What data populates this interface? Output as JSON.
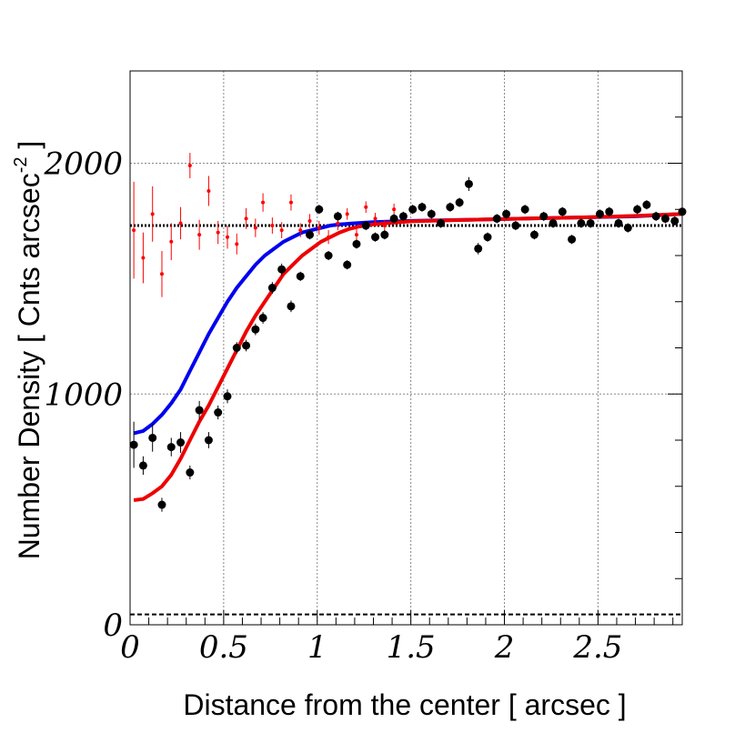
{
  "chart_data": {
    "type": "scatter",
    "title": "",
    "xlabel": "Distance from the center [ arcsec ]",
    "ylabel_main": "Number Density [ Cnts arcsec",
    "ylabel_sup": "-2",
    "ylabel_end": " ]",
    "xlim": [
      0,
      2.95
    ],
    "ylim": [
      0,
      2400
    ],
    "grid": true,
    "x_ticks": [
      0,
      0.5,
      1,
      1.5,
      2,
      2.5
    ],
    "x_tick_labels": [
      "0",
      "0.5",
      "1",
      "1.5",
      "2",
      "2.5"
    ],
    "y_ticks": [
      0,
      1000,
      2000
    ],
    "y_tick_labels": [
      "0",
      "1000",
      "2000"
    ],
    "colors": {
      "data_black": "#000000",
      "data_red": "#ff0000",
      "model_blue": "#0000ee",
      "model_red": "#ee0000"
    },
    "black_points": [
      [
        0.02,
        780,
        200
      ],
      [
        0.07,
        690,
        80
      ],
      [
        0.12,
        810,
        120
      ],
      [
        0.17,
        520,
        60
      ],
      [
        0.22,
        770,
        80
      ],
      [
        0.27,
        790,
        90
      ],
      [
        0.32,
        660,
        60
      ],
      [
        0.37,
        930,
        80
      ],
      [
        0.42,
        800,
        70
      ],
      [
        0.47,
        920,
        60
      ],
      [
        0.52,
        990,
        60
      ],
      [
        0.57,
        1200,
        50
      ],
      [
        0.62,
        1210,
        50
      ],
      [
        0.67,
        1280,
        50
      ],
      [
        0.71,
        1330,
        50
      ],
      [
        0.76,
        1460,
        50
      ],
      [
        0.81,
        1540,
        50
      ],
      [
        0.86,
        1380,
        50
      ],
      [
        0.91,
        1510,
        40
      ],
      [
        0.96,
        1690,
        40
      ],
      [
        1.01,
        1800,
        40
      ],
      [
        1.06,
        1600,
        40
      ],
      [
        1.11,
        1770,
        40
      ],
      [
        1.16,
        1560,
        40
      ],
      [
        1.21,
        1650,
        40
      ],
      [
        1.26,
        1730,
        40
      ],
      [
        1.31,
        1680,
        40
      ],
      [
        1.36,
        1690,
        40
      ],
      [
        1.41,
        1760,
        40
      ],
      [
        1.46,
        1770,
        40
      ],
      [
        1.51,
        1800,
        40
      ],
      [
        1.56,
        1810,
        40
      ],
      [
        1.61,
        1780,
        40
      ],
      [
        1.66,
        1740,
        40
      ],
      [
        1.71,
        1810,
        40
      ],
      [
        1.76,
        1830,
        40
      ],
      [
        1.81,
        1910,
        60
      ],
      [
        1.86,
        1630,
        50
      ],
      [
        1.91,
        1680,
        40
      ],
      [
        1.96,
        1760,
        40
      ],
      [
        2.01,
        1780,
        40
      ],
      [
        2.06,
        1730,
        40
      ],
      [
        2.11,
        1800,
        40
      ],
      [
        2.16,
        1690,
        40
      ],
      [
        2.21,
        1770,
        40
      ],
      [
        2.26,
        1740,
        40
      ],
      [
        2.31,
        1790,
        40
      ],
      [
        2.36,
        1670,
        40
      ],
      [
        2.41,
        1740,
        40
      ],
      [
        2.46,
        1740,
        40
      ],
      [
        2.51,
        1780,
        40
      ],
      [
        2.56,
        1790,
        40
      ],
      [
        2.61,
        1740,
        40
      ],
      [
        2.66,
        1720,
        40
      ],
      [
        2.71,
        1800,
        40
      ],
      [
        2.76,
        1820,
        40
      ],
      [
        2.81,
        1770,
        40
      ],
      [
        2.86,
        1760,
        40
      ],
      [
        2.91,
        1750,
        40
      ],
      [
        2.95,
        1790,
        30
      ]
    ],
    "red_points": [
      [
        0.02,
        1710,
        420
      ],
      [
        0.07,
        1590,
        220
      ],
      [
        0.12,
        1780,
        240
      ],
      [
        0.17,
        1520,
        200
      ],
      [
        0.22,
        1660,
        160
      ],
      [
        0.27,
        1740,
        140
      ],
      [
        0.32,
        1990,
        110
      ],
      [
        0.37,
        1690,
        130
      ],
      [
        0.42,
        1880,
        130
      ],
      [
        0.47,
        1700,
        100
      ],
      [
        0.52,
        1680,
        100
      ],
      [
        0.57,
        1650,
        90
      ],
      [
        0.62,
        1760,
        90
      ],
      [
        0.67,
        1720,
        80
      ],
      [
        0.71,
        1830,
        80
      ],
      [
        0.76,
        1730,
        70
      ],
      [
        0.81,
        1710,
        70
      ],
      [
        0.86,
        1830,
        70
      ],
      [
        0.91,
        1710,
        60
      ],
      [
        0.96,
        1750,
        60
      ],
      [
        1.01,
        1720,
        60
      ],
      [
        1.06,
        1680,
        60
      ],
      [
        1.11,
        1740,
        60
      ],
      [
        1.16,
        1780,
        50
      ],
      [
        1.21,
        1690,
        50
      ],
      [
        1.26,
        1810,
        50
      ],
      [
        1.31,
        1760,
        50
      ],
      [
        1.36,
        1730,
        50
      ],
      [
        1.41,
        1800,
        50
      ]
    ],
    "blue_model": [
      [
        0.02,
        830
      ],
      [
        0.07,
        840
      ],
      [
        0.12,
        870
      ],
      [
        0.17,
        910
      ],
      [
        0.22,
        960
      ],
      [
        0.27,
        1020
      ],
      [
        0.32,
        1100
      ],
      [
        0.37,
        1180
      ],
      [
        0.42,
        1260
      ],
      [
        0.47,
        1330
      ],
      [
        0.52,
        1400
      ],
      [
        0.57,
        1460
      ],
      [
        0.62,
        1510
      ],
      [
        0.67,
        1560
      ],
      [
        0.72,
        1600
      ],
      [
        0.77,
        1630
      ],
      [
        0.82,
        1660
      ],
      [
        0.87,
        1680
      ],
      [
        0.92,
        1700
      ],
      [
        0.97,
        1710
      ],
      [
        1.02,
        1720
      ],
      [
        1.07,
        1730
      ],
      [
        1.12,
        1735
      ],
      [
        1.2,
        1740
      ],
      [
        1.3,
        1745
      ],
      [
        1.5,
        1750
      ],
      [
        1.8,
        1755
      ],
      [
        2.1,
        1760
      ],
      [
        2.4,
        1765
      ],
      [
        2.7,
        1770
      ],
      [
        2.95,
        1780
      ]
    ],
    "red_model": [
      [
        0.02,
        540
      ],
      [
        0.07,
        545
      ],
      [
        0.12,
        570
      ],
      [
        0.17,
        600
      ],
      [
        0.22,
        650
      ],
      [
        0.27,
        720
      ],
      [
        0.32,
        800
      ],
      [
        0.37,
        880
      ],
      [
        0.42,
        950
      ],
      [
        0.47,
        1030
      ],
      [
        0.52,
        1110
      ],
      [
        0.57,
        1190
      ],
      [
        0.62,
        1270
      ],
      [
        0.67,
        1340
      ],
      [
        0.72,
        1400
      ],
      [
        0.77,
        1460
      ],
      [
        0.82,
        1520
      ],
      [
        0.87,
        1560
      ],
      [
        0.92,
        1600
      ],
      [
        0.97,
        1630
      ],
      [
        1.02,
        1660
      ],
      [
        1.07,
        1680
      ],
      [
        1.12,
        1700
      ],
      [
        1.17,
        1715
      ],
      [
        1.22,
        1725
      ],
      [
        1.3,
        1735
      ],
      [
        1.4,
        1742
      ],
      [
        1.5,
        1748
      ],
      [
        1.8,
        1755
      ],
      [
        2.1,
        1760
      ],
      [
        2.4,
        1765
      ],
      [
        2.7,
        1772
      ],
      [
        2.95,
        1780
      ]
    ],
    "flat_level": 1730,
    "background_level": 45
  }
}
